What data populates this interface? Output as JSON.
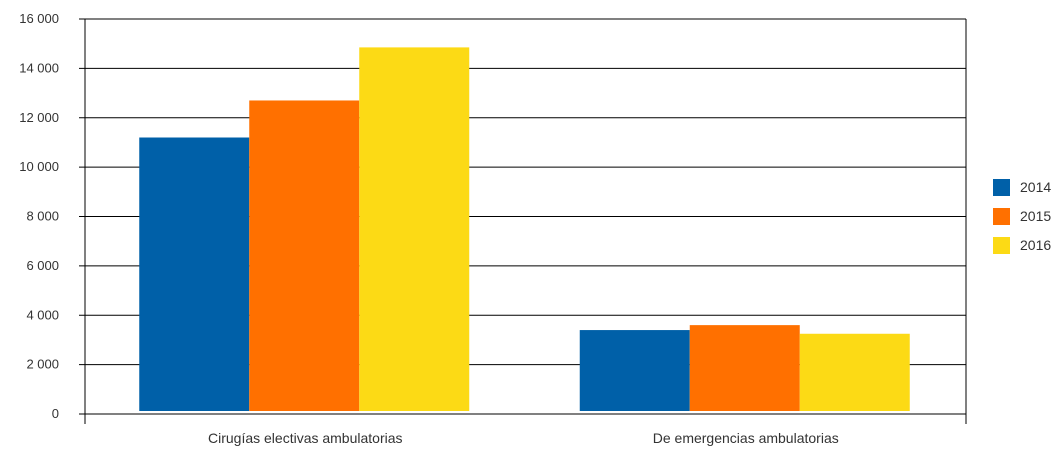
{
  "chart_data": {
    "type": "bar",
    "categories": [
      "Cirugías electivas ambulatorias",
      "De emergencias ambulatorias"
    ],
    "series": [
      {
        "name": "2014",
        "values": [
          11200,
          3400
        ],
        "color": "#0060A8"
      },
      {
        "name": "2015",
        "values": [
          12700,
          3600
        ],
        "color": "#FF7000"
      },
      {
        "name": "2016",
        "values": [
          14850,
          3250
        ],
        "color": "#FCDA15"
      }
    ],
    "ylim": [
      0,
      16000
    ],
    "yticks": [
      0,
      2000,
      4000,
      6000,
      8000,
      10000,
      12000,
      14000,
      16000
    ],
    "ytick_labels": [
      "0",
      "2 000",
      "4 000",
      "6 000",
      "8 000",
      "10 000",
      "12 000",
      "14 000",
      "16 000"
    ],
    "grid": true,
    "legend_position": "right",
    "title": "",
    "xlabel": "",
    "ylabel": ""
  }
}
